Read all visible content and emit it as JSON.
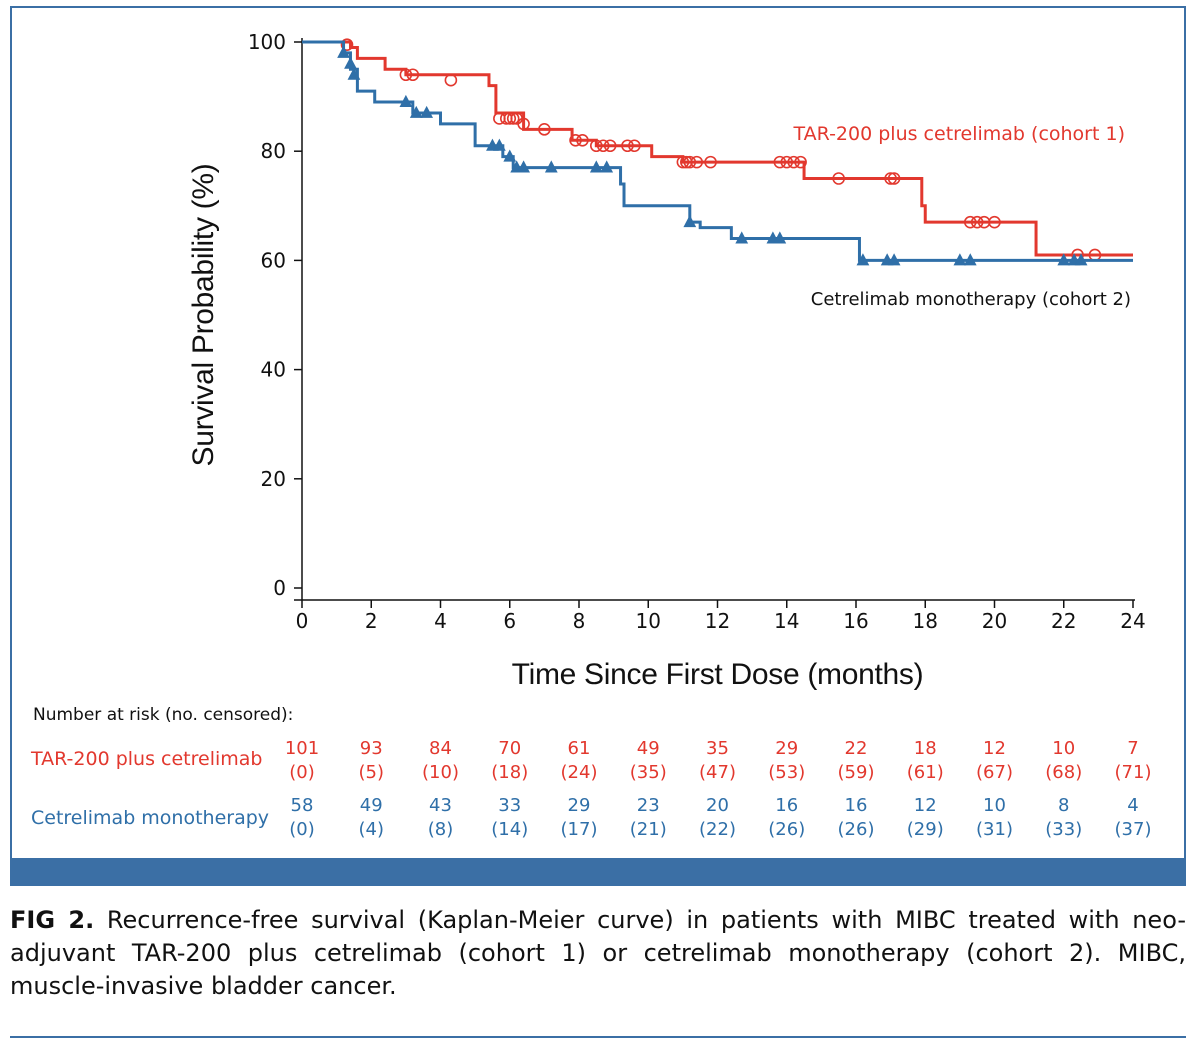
{
  "chart_data": {
    "type": "line",
    "xlabel": "Time Since First Dose (months)",
    "ylabel": "Survival Probability (%)",
    "xlim": [
      0,
      24
    ],
    "ylim": [
      0,
      100
    ],
    "xticks": [
      0,
      2,
      4,
      6,
      8,
      10,
      12,
      14,
      16,
      18,
      20,
      22,
      24
    ],
    "yticks": [
      0,
      20,
      40,
      60,
      80,
      100
    ],
    "grid": false,
    "series": [
      {
        "name": "TAR-200 plus cetrelimab (cohort 1)",
        "color": "#e2382e",
        "censor_marker": "open-circle",
        "steps": [
          [
            0,
            100
          ],
          [
            1.4,
            99
          ],
          [
            1.6,
            97
          ],
          [
            2.4,
            95
          ],
          [
            3.0,
            94
          ],
          [
            5.4,
            92
          ],
          [
            5.6,
            87
          ],
          [
            6.4,
            84
          ],
          [
            7.8,
            82
          ],
          [
            8.5,
            81
          ],
          [
            10.1,
            79
          ],
          [
            11.0,
            78
          ],
          [
            14.5,
            75
          ],
          [
            17.9,
            70
          ],
          [
            18.0,
            67
          ],
          [
            21.2,
            61
          ],
          [
            24.0,
            61
          ]
        ],
        "censored": [
          [
            1.3,
            99.5
          ],
          [
            3.0,
            94
          ],
          [
            3.2,
            94
          ],
          [
            4.3,
            93
          ],
          [
            5.7,
            86
          ],
          [
            5.9,
            86
          ],
          [
            6.0,
            86
          ],
          [
            6.1,
            86
          ],
          [
            6.2,
            86
          ],
          [
            6.4,
            85
          ],
          [
            7.0,
            84
          ],
          [
            7.9,
            82
          ],
          [
            8.1,
            82
          ],
          [
            8.5,
            81
          ],
          [
            8.7,
            81
          ],
          [
            8.9,
            81
          ],
          [
            9.4,
            81
          ],
          [
            9.6,
            81
          ],
          [
            11.0,
            78
          ],
          [
            11.1,
            78
          ],
          [
            11.2,
            78
          ],
          [
            11.4,
            78
          ],
          [
            11.8,
            78
          ],
          [
            13.8,
            78
          ],
          [
            14.0,
            78
          ],
          [
            14.2,
            78
          ],
          [
            14.4,
            78
          ],
          [
            15.5,
            75
          ],
          [
            17.0,
            75
          ],
          [
            17.1,
            75
          ],
          [
            19.3,
            67
          ],
          [
            19.5,
            67
          ],
          [
            19.7,
            67
          ],
          [
            20.0,
            67
          ],
          [
            22.4,
            61
          ],
          [
            22.9,
            61
          ]
        ]
      },
      {
        "name": "Cetrelimab monotherapy (cohort 2)",
        "color": "#2f6fa8",
        "censor_marker": "filled-triangle",
        "steps": [
          [
            0,
            100
          ],
          [
            1.2,
            98
          ],
          [
            1.4,
            95
          ],
          [
            1.6,
            91
          ],
          [
            2.1,
            89
          ],
          [
            3.2,
            87
          ],
          [
            4.0,
            85
          ],
          [
            5.0,
            81
          ],
          [
            5.8,
            79
          ],
          [
            6.1,
            77
          ],
          [
            8.4,
            77
          ],
          [
            9.2,
            74
          ],
          [
            9.3,
            70
          ],
          [
            11.2,
            67
          ],
          [
            11.5,
            66
          ],
          [
            12.4,
            64
          ],
          [
            16.1,
            60
          ],
          [
            24.0,
            60
          ]
        ],
        "censored": [
          [
            1.2,
            98
          ],
          [
            1.4,
            96
          ],
          [
            1.5,
            94
          ],
          [
            3.0,
            89
          ],
          [
            3.3,
            87
          ],
          [
            3.6,
            87
          ],
          [
            5.5,
            81
          ],
          [
            5.7,
            81
          ],
          [
            6.0,
            79
          ],
          [
            6.2,
            77
          ],
          [
            6.4,
            77
          ],
          [
            7.2,
            77
          ],
          [
            8.5,
            77
          ],
          [
            8.8,
            77
          ],
          [
            11.2,
            67
          ],
          [
            12.7,
            64
          ],
          [
            13.6,
            64
          ],
          [
            13.8,
            64
          ],
          [
            16.2,
            60
          ],
          [
            16.9,
            60
          ],
          [
            17.1,
            60
          ],
          [
            19.0,
            60
          ],
          [
            19.3,
            60
          ],
          [
            22.0,
            60
          ],
          [
            22.3,
            60
          ],
          [
            22.5,
            60
          ]
        ]
      }
    ],
    "annotations": [
      {
        "text": "TAR-200 plus cetrelimab (cohort 1)",
        "color": "#e2382e"
      },
      {
        "text": "Cetrelimab monotherapy (cohort 2)",
        "color": "#111111"
      }
    ]
  },
  "risk_table": {
    "title": "Number at risk (no. censored):",
    "rows": [
      {
        "label": "TAR-200 plus cetrelimab",
        "color": "#e2382e",
        "at_risk": [
          "101",
          "93",
          "84",
          "70",
          "61",
          "49",
          "35",
          "29",
          "22",
          "18",
          "12",
          "10",
          "7"
        ],
        "censored": [
          "(0)",
          "(5)",
          "(10)",
          "(18)",
          "(24)",
          "(35)",
          "(47)",
          "(53)",
          "(59)",
          "(61)",
          "(67)",
          "(68)",
          "(71)"
        ]
      },
      {
        "label": "Cetrelimab monotherapy",
        "color": "#2f6fa8",
        "at_risk": [
          "58",
          "49",
          "43",
          "33",
          "29",
          "23",
          "20",
          "16",
          "16",
          "12",
          "10",
          "8",
          "4"
        ],
        "censored": [
          "(0)",
          "(4)",
          "(8)",
          "(14)",
          "(17)",
          "(21)",
          "(22)",
          "(26)",
          "(26)",
          "(29)",
          "(31)",
          "(33)",
          "(37)"
        ]
      }
    ]
  },
  "caption": {
    "fig_label": "FIG 2.",
    "text": "Recurrence-free survival (Kaplan-Meier curve) in patients with MIBC treated with neo-adjuvant TAR-200 plus cetrelimab (cohort 1) or cetrelimab monotherapy (cohort 2). MIBC, muscle-invasive bladder cancer."
  }
}
